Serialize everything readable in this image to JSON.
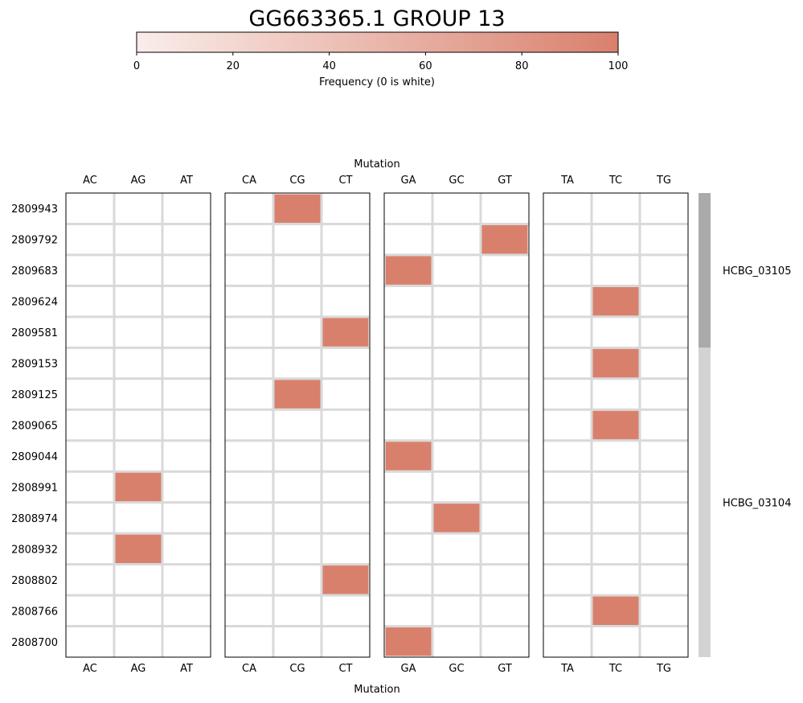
{
  "chart_data": {
    "type": "heatmap",
    "title": "GG663365.1 GROUP 13",
    "colorbar": {
      "label": "Frequency (0 is white)",
      "min": 0,
      "max": 100,
      "ticks": [
        0,
        20,
        40,
        60,
        80,
        100
      ],
      "color_low": "#faedea",
      "color_high": "#d9806d",
      "orientation": "horizontal",
      "placement": "top"
    },
    "xlabel": "Mutation",
    "column_groups": [
      [
        "AC",
        "AG",
        "AT"
      ],
      [
        "CA",
        "CG",
        "CT"
      ],
      [
        "GA",
        "GC",
        "GT"
      ],
      [
        "TA",
        "TC",
        "TG"
      ]
    ],
    "rows": [
      "2809943",
      "2809792",
      "2809683",
      "2809624",
      "2809581",
      "2809153",
      "2809125",
      "2809065",
      "2809044",
      "2808991",
      "2808974",
      "2808932",
      "2808802",
      "2808766",
      "2808700"
    ],
    "cells": [
      {
        "row": "2809943",
        "mutation": "CG",
        "value": 100
      },
      {
        "row": "2809792",
        "mutation": "GT",
        "value": 100
      },
      {
        "row": "2809683",
        "mutation": "GA",
        "value": 100
      },
      {
        "row": "2809624",
        "mutation": "TC",
        "value": 100
      },
      {
        "row": "2809581",
        "mutation": "CT",
        "value": 100
      },
      {
        "row": "2809153",
        "mutation": "TC",
        "value": 100
      },
      {
        "row": "2809125",
        "mutation": "CG",
        "value": 100
      },
      {
        "row": "2809065",
        "mutation": "TC",
        "value": 100
      },
      {
        "row": "2809044",
        "mutation": "GA",
        "value": 100
      },
      {
        "row": "2808991",
        "mutation": "AG",
        "value": 100
      },
      {
        "row": "2808974",
        "mutation": "GC",
        "value": 100
      },
      {
        "row": "2808932",
        "mutation": "AG",
        "value": 100
      },
      {
        "row": "2808802",
        "mutation": "CT",
        "value": 100
      },
      {
        "row": "2808766",
        "mutation": "TC",
        "value": 100
      },
      {
        "row": "2808700",
        "mutation": "GA",
        "value": 100
      }
    ],
    "gene_annotations": [
      {
        "name": "HCBG_03105",
        "first_row": "2809943",
        "last_row": "2809581",
        "color": "#aaaaaa"
      },
      {
        "name": "HCBG_03104",
        "first_row": "2809153",
        "last_row": "2808700",
        "color": "#d3d3d3"
      }
    ],
    "grid_color": "#d9d9d9"
  }
}
